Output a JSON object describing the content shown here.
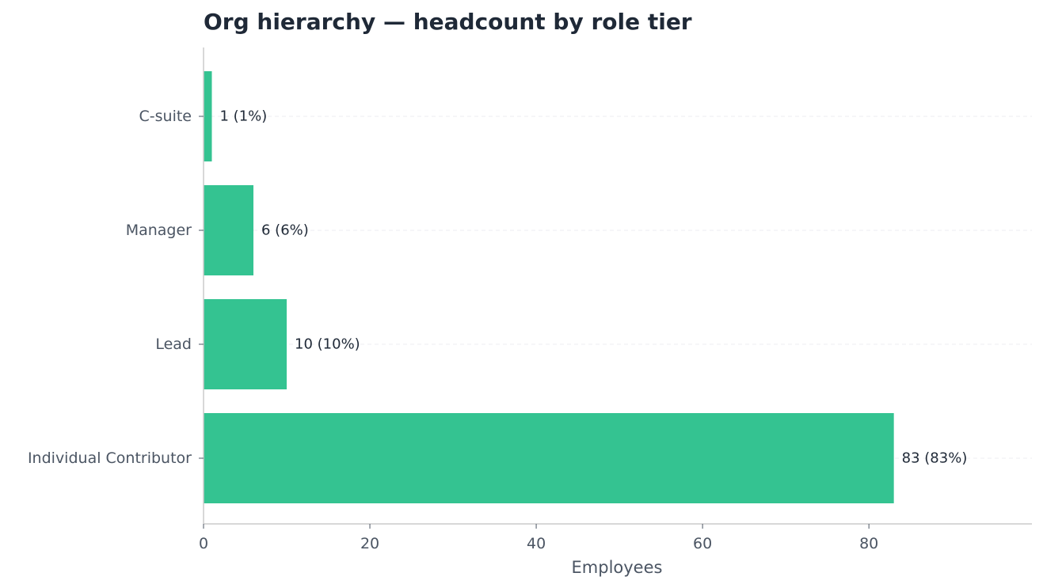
{
  "chart_data": {
    "type": "bar",
    "orientation": "horizontal",
    "title": "Org hierarchy — headcount by role tier",
    "xlabel": "Employees",
    "ylabel": "",
    "categories": [
      "C-suite",
      "Manager",
      "Lead",
      "Individual Contributor"
    ],
    "values": [
      1,
      6,
      10,
      83
    ],
    "data_labels": [
      "1 (1%)",
      "6 (6%)",
      "10 (10%)",
      "83 (83%)"
    ],
    "xlim": [
      0,
      99.6
    ],
    "xticks": [
      0,
      20,
      40,
      60,
      80
    ],
    "xtick_labels": [
      "0",
      "20",
      "40",
      "60",
      "80"
    ],
    "grid": "y-dashed",
    "legend": "none"
  },
  "colors": {
    "bar": "#34c391",
    "title": "#1f2937",
    "tick_text": "#4b5563",
    "axis_line": "#cccccc",
    "grid": "#e5e7eb",
    "value_text": "#1f2937"
  }
}
